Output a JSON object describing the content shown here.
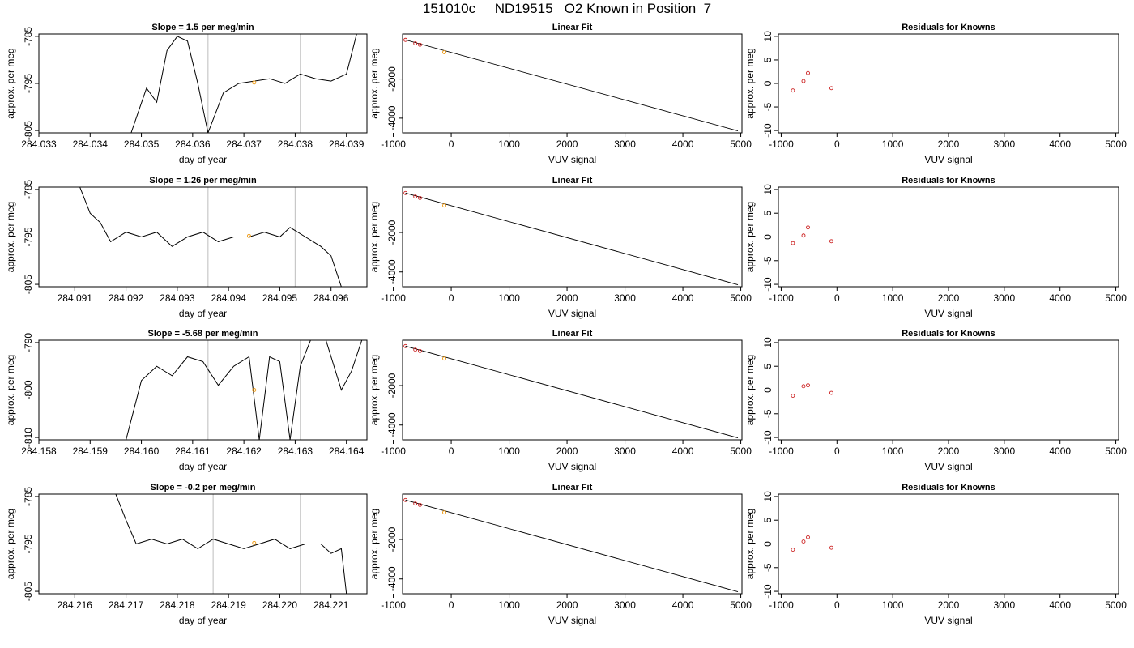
{
  "figure": {
    "title": "151010c     ND19515   O2 Known in Position  7"
  },
  "chart_data": [
    {
      "type": "line",
      "title": "Slope =  1.5  per meg/min",
      "xlabel": "day of year",
      "ylabel": "approx. per meg",
      "xticks": [
        "284.033",
        "284.034",
        "284.035",
        "284.036",
        "284.037",
        "284.038",
        "284.039"
      ],
      "yticks": [
        "-785",
        "-795",
        "-805"
      ],
      "xlim": [
        284.033,
        284.0394
      ],
      "ylim": [
        -805.5,
        -784.5
      ],
      "vlines": [
        284.0363,
        284.0381
      ],
      "known_point": {
        "x": 284.0372,
        "y": -794.8
      },
      "series": [
        {
          "x": [
            284.0348,
            284.0351,
            284.0353,
            284.0355,
            284.0357,
            284.0359,
            284.0361,
            284.0363,
            284.0366,
            284.0369,
            284.0372,
            284.0375,
            284.0378,
            284.0381,
            284.0384,
            284.0387,
            284.039,
            284.0392
          ],
          "y": [
            -805.5,
            -796,
            -799,
            -788,
            -785,
            -786,
            -795,
            -805.5,
            -797,
            -795,
            -794.5,
            -794,
            -795,
            -793,
            -794,
            -794.5,
            -793,
            -784.5
          ]
        }
      ]
    },
    {
      "type": "scatter",
      "title": "Linear Fit",
      "xlabel": "VUV signal",
      "ylabel": "approx. per meg",
      "xticks": [
        "-1000",
        "0",
        "1000",
        "2000",
        "3000",
        "4000",
        "5000"
      ],
      "yticks": [
        "-2000",
        "-4000"
      ],
      "xlim": [
        -840,
        5020
      ],
      "ylim": [
        -4750,
        300
      ],
      "points": [
        {
          "x": -790,
          "y": 0
        },
        {
          "x": -620,
          "y": -180
        },
        {
          "x": -540,
          "y": -250
        }
      ],
      "known_point": {
        "x": -120,
        "y": -630
      },
      "fit_line": {
        "x": [
          -790,
          4950
        ],
        "y": [
          0,
          -4650
        ]
      }
    },
    {
      "type": "scatter",
      "title": "Residuals for Knowns",
      "xlabel": "VUV signal",
      "ylabel": "approx. per meg",
      "xticks": [
        "-1000",
        "0",
        "1000",
        "2000",
        "3000",
        "4000",
        "5000"
      ],
      "yticks": [
        "10",
        "5",
        "0",
        "-5",
        "-10"
      ],
      "xlim": [
        -1050,
        5050
      ],
      "ylim": [
        -10.5,
        10.5
      ],
      "points": [
        {
          "x": -790,
          "y": -1.5
        },
        {
          "x": -600,
          "y": 0.5
        },
        {
          "x": -520,
          "y": 2.2
        },
        {
          "x": -100,
          "y": -1.0
        }
      ]
    },
    {
      "type": "line",
      "title": "Slope =  1.26  per meg/min",
      "xlabel": "day of year",
      "ylabel": "approx. per meg",
      "xticks": [
        "284.091",
        "284.092",
        "284.093",
        "284.094",
        "284.095",
        "284.096"
      ],
      "yticks": [
        "-785",
        "-795",
        "-805"
      ],
      "xlim": [
        284.0903,
        284.0967
      ],
      "ylim": [
        -805.5,
        -784.5
      ],
      "vlines": [
        284.0936,
        284.0953
      ],
      "known_point": {
        "x": 284.0944,
        "y": -794.8
      },
      "series": [
        {
          "x": [
            284.0911,
            284.0913,
            284.0915,
            284.0917,
            284.092,
            284.0923,
            284.0926,
            284.0929,
            284.0932,
            284.0935,
            284.0938,
            284.0941,
            284.0944,
            284.0947,
            284.095,
            284.0952,
            284.0955,
            284.0958,
            284.096,
            284.0962
          ],
          "y": [
            -784.5,
            -790,
            -792,
            -796,
            -794,
            -795,
            -794,
            -797,
            -795,
            -794,
            -796,
            -795,
            -795,
            -794,
            -795,
            -793,
            -795,
            -797,
            -799,
            -805.5
          ]
        }
      ]
    },
    {
      "type": "scatter",
      "title": "Linear Fit",
      "xlabel": "VUV signal",
      "ylabel": "approx. per meg",
      "xticks": [
        "-1000",
        "0",
        "1000",
        "2000",
        "3000",
        "4000",
        "5000"
      ],
      "yticks": [
        "-2000",
        "-4000"
      ],
      "xlim": [
        -840,
        5020
      ],
      "ylim": [
        -4750,
        300
      ],
      "points": [
        {
          "x": -790,
          "y": 0
        },
        {
          "x": -620,
          "y": -180
        },
        {
          "x": -540,
          "y": -250
        }
      ],
      "known_point": {
        "x": -120,
        "y": -630
      },
      "fit_line": {
        "x": [
          -790,
          4950
        ],
        "y": [
          0,
          -4650
        ]
      }
    },
    {
      "type": "scatter",
      "title": "Residuals for Knowns",
      "xlabel": "VUV signal",
      "ylabel": "approx. per meg",
      "xticks": [
        "-1000",
        "0",
        "1000",
        "2000",
        "3000",
        "4000",
        "5000"
      ],
      "yticks": [
        "10",
        "5",
        "0",
        "-5",
        "-10"
      ],
      "xlim": [
        -1050,
        5050
      ],
      "ylim": [
        -10.5,
        10.5
      ],
      "points": [
        {
          "x": -790,
          "y": -1.3
        },
        {
          "x": -600,
          "y": 0.3
        },
        {
          "x": -520,
          "y": 2.0
        },
        {
          "x": -100,
          "y": -0.9
        }
      ]
    },
    {
      "type": "line",
      "title": "Slope =  -5.68  per meg/min",
      "xlabel": "day of year",
      "ylabel": "approx. per meg",
      "xticks": [
        "284.158",
        "284.159",
        "284.160",
        "284.161",
        "284.162",
        "284.163",
        "284.164"
      ],
      "yticks": [
        "-790",
        "-800",
        "-810"
      ],
      "xlim": [
        284.158,
        284.1644
      ],
      "ylim": [
        -810.5,
        -789.5
      ],
      "vlines": [
        284.1613,
        284.1631
      ],
      "known_point": {
        "x": 284.1622,
        "y": -800
      },
      "series": [
        {
          "x": [
            284.1597,
            284.16,
            284.1603,
            284.1606,
            284.1609,
            284.1612,
            284.1615,
            284.1618,
            284.1621,
            284.1623,
            284.1625,
            284.1627,
            284.1629,
            284.1631,
            284.1633,
            284.1636,
            284.1639,
            284.1641,
            284.1643
          ],
          "y": [
            -810.5,
            -798,
            -795,
            -797,
            -793,
            -794,
            -799,
            -795,
            -793,
            -810.5,
            -793,
            -794,
            -810.5,
            -795,
            -789.5,
            -789.5,
            -800,
            -796,
            -789.5
          ]
        }
      ]
    },
    {
      "type": "scatter",
      "title": "Linear Fit",
      "xlabel": "VUV signal",
      "ylabel": "approx. per meg",
      "xticks": [
        "-1000",
        "0",
        "1000",
        "2000",
        "3000",
        "4000",
        "5000"
      ],
      "yticks": [
        "-2000",
        "-4000"
      ],
      "xlim": [
        -840,
        5020
      ],
      "ylim": [
        -4750,
        300
      ],
      "points": [
        {
          "x": -790,
          "y": 0
        },
        {
          "x": -620,
          "y": -180
        },
        {
          "x": -540,
          "y": -250
        }
      ],
      "known_point": {
        "x": -120,
        "y": -630
      },
      "fit_line": {
        "x": [
          -790,
          4950
        ],
        "y": [
          0,
          -4650
        ]
      }
    },
    {
      "type": "scatter",
      "title": "Residuals for Knowns",
      "xlabel": "VUV signal",
      "ylabel": "approx. per meg",
      "xticks": [
        "-1000",
        "0",
        "1000",
        "2000",
        "3000",
        "4000",
        "5000"
      ],
      "yticks": [
        "10",
        "5",
        "0",
        "-5",
        "-10"
      ],
      "xlim": [
        -1050,
        5050
      ],
      "ylim": [
        -10.5,
        10.5
      ],
      "points": [
        {
          "x": -790,
          "y": -1.2
        },
        {
          "x": -600,
          "y": 0.8
        },
        {
          "x": -520,
          "y": 1.0
        },
        {
          "x": -100,
          "y": -0.6
        }
      ]
    },
    {
      "type": "line",
      "title": "Slope =  -0.2  per meg/min",
      "xlabel": "day of year",
      "ylabel": "approx. per meg",
      "xticks": [
        "284.216",
        "284.217",
        "284.218",
        "284.219",
        "284.220",
        "284.221"
      ],
      "yticks": [
        "-785",
        "-795",
        "-805"
      ],
      "xlim": [
        284.2153,
        284.2217
      ],
      "ylim": [
        -805.5,
        -784.5
      ],
      "vlines": [
        284.2187,
        284.2204
      ],
      "known_point": {
        "x": 284.2195,
        "y": -794.8
      },
      "series": [
        {
          "x": [
            284.2168,
            284.217,
            284.2172,
            284.2175,
            284.2178,
            284.2181,
            284.2184,
            284.2187,
            284.219,
            284.2193,
            284.2196,
            284.2199,
            284.2202,
            284.2205,
            284.2208,
            284.221,
            284.2212,
            284.2213
          ],
          "y": [
            -784.5,
            -790,
            -795,
            -794,
            -795,
            -794,
            -796,
            -794,
            -795,
            -796,
            -795,
            -794,
            -796,
            -795,
            -795,
            -797,
            -796,
            -805.5
          ]
        }
      ]
    },
    {
      "type": "scatter",
      "title": "Linear Fit",
      "xlabel": "VUV signal",
      "ylabel": "approx. per meg",
      "xticks": [
        "-1000",
        "0",
        "1000",
        "2000",
        "3000",
        "4000",
        "5000"
      ],
      "yticks": [
        "-2000",
        "-4000"
      ],
      "xlim": [
        -840,
        5020
      ],
      "ylim": [
        -4750,
        300
      ],
      "points": [
        {
          "x": -790,
          "y": 0
        },
        {
          "x": -620,
          "y": -180
        },
        {
          "x": -540,
          "y": -250
        }
      ],
      "known_point": {
        "x": -120,
        "y": -630
      },
      "fit_line": {
        "x": [
          -790,
          4950
        ],
        "y": [
          0,
          -4650
        ]
      }
    },
    {
      "type": "scatter",
      "title": "Residuals for Knowns",
      "xlabel": "VUV signal",
      "ylabel": "approx. per meg",
      "xticks": [
        "-1000",
        "0",
        "1000",
        "2000",
        "3000",
        "4000",
        "5000"
      ],
      "yticks": [
        "10",
        "5",
        "0",
        "-5",
        "-10"
      ],
      "xlim": [
        -1050,
        5050
      ],
      "ylim": [
        -10.5,
        10.5
      ],
      "points": [
        {
          "x": -790,
          "y": -1.2
        },
        {
          "x": -600,
          "y": 0.5
        },
        {
          "x": -520,
          "y": 1.4
        },
        {
          "x": -100,
          "y": -0.8
        }
      ]
    }
  ]
}
